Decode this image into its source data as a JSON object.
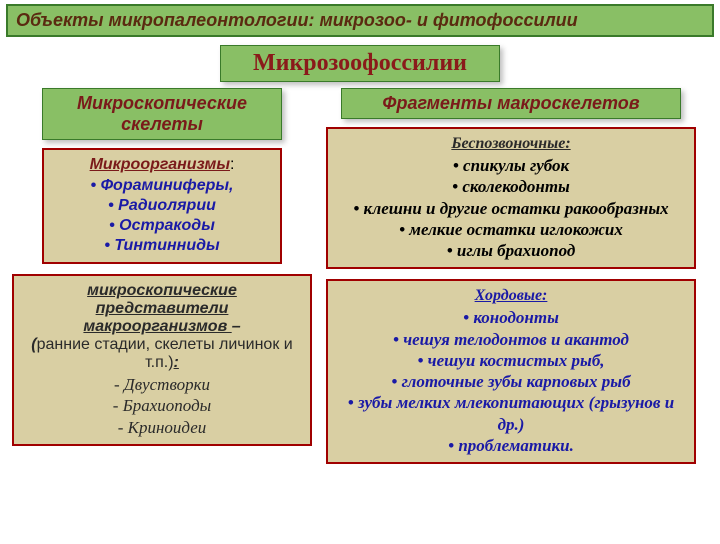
{
  "colors": {
    "green_bg": "#89bf65",
    "green_border": "#3a7a2a",
    "beige_bg": "#d9cfa3",
    "red_border": "#a00000",
    "subhead_text": "#7a1a1a",
    "title_text": "#8a1a1a",
    "link_blue": "#1a1aa6",
    "dark_red": "#7a1a1a",
    "dark_text": "#2a2a2a",
    "top_text": "#5a2a10"
  },
  "fonts": {
    "top_banner_size": 18,
    "title_size": 24,
    "subhead_size": 18,
    "body_size": 16,
    "serif_body_size": 17
  },
  "top_banner": "Объекты микропалеонтологии: микрозоо- и фитофоссилии",
  "main_title": "Микрозоофоссилии",
  "left": {
    "subhead": "Микроскопические скелеты",
    "box1": {
      "heading": "Микроорганизмы",
      "colon": ":",
      "items": [
        "Фораминиферы,",
        "Радиолярии",
        "Остракоды",
        "Тинтинниды"
      ]
    },
    "box2": {
      "line1": "микроскопические представители",
      "line2_underlined": " макроорганизмов ",
      "line2_suffix": "–",
      "line3_open": "(",
      "line3_text": "ранние стадии, скелеты личинок и т.п.)",
      "line3_colon": ":",
      "items": [
        "Двустворки",
        "Брахиоподы",
        "Криноидеи"
      ]
    }
  },
  "right": {
    "subhead": "Фрагменты макроскелетов",
    "box1": {
      "heading": "Беспозвоночные:",
      "items": [
        "спикулы губок",
        "сколекодонты",
        "клешни и другие остатки ракообразных",
        "мелкие остатки иглокожих",
        "иглы брахиопод"
      ]
    },
    "box2": {
      "heading": "Хордовые:",
      "items": [
        "конодонты",
        "чешуя телодонтов и акантод",
        "чешуи костистых рыб,",
        "глоточные зубы карповых рыб",
        "зубы мелких млекопитающих (грызунов и др.)",
        "проблематики."
      ]
    }
  }
}
